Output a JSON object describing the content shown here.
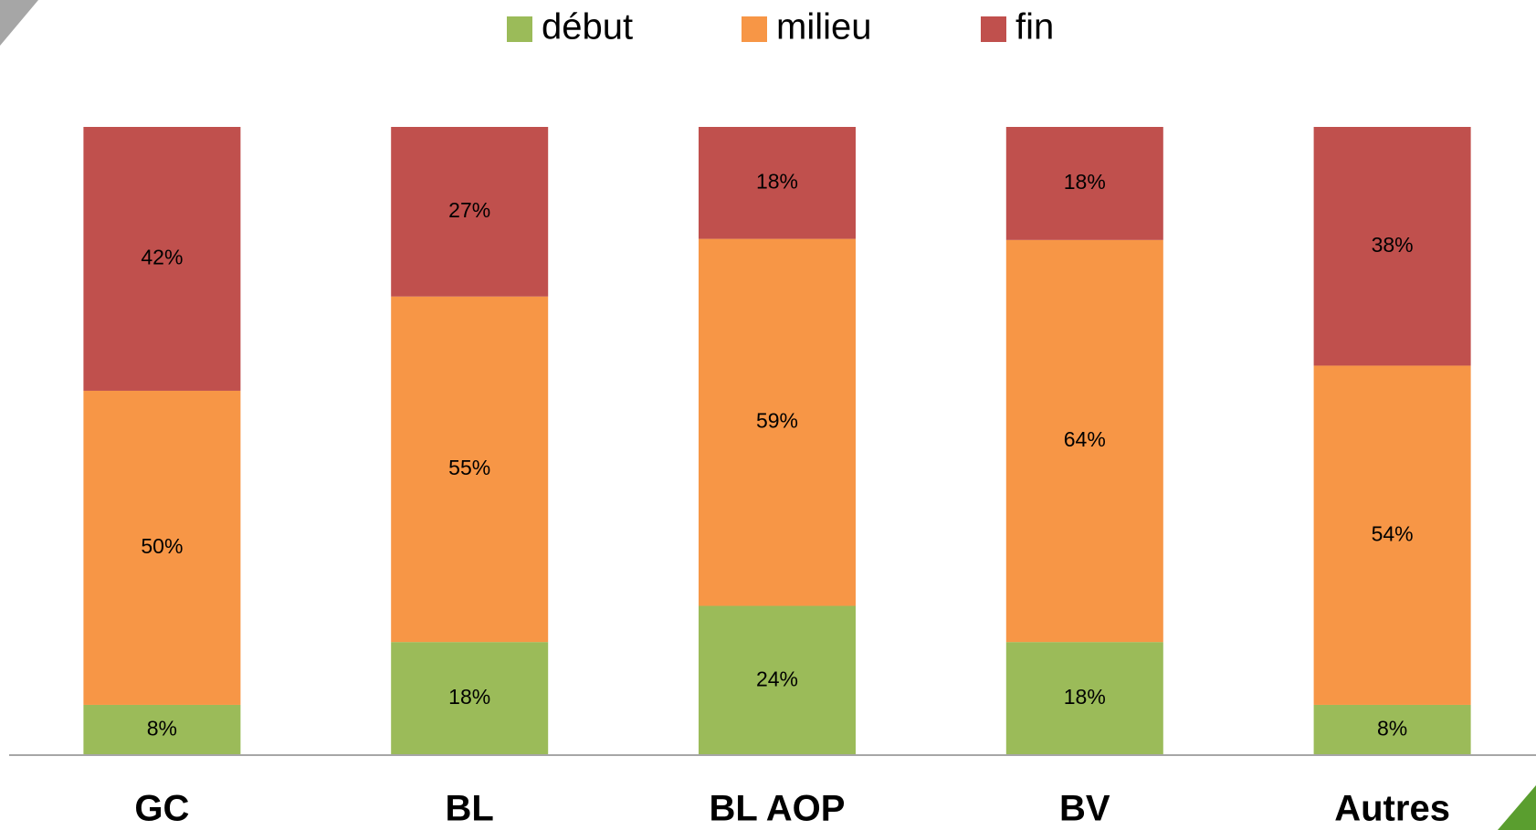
{
  "chart_data": {
    "type": "bar",
    "stacked": "percent",
    "categories": [
      "GC",
      "BL",
      "BL AOP",
      "BV",
      "Autres"
    ],
    "series": [
      {
        "name": "début",
        "color": "#9bbb59",
        "values": [
          8,
          18,
          24,
          18,
          8
        ],
        "value_labels": [
          "8%",
          "18%",
          "24%",
          "18%",
          "8%"
        ]
      },
      {
        "name": "milieu",
        "color": "#f79646",
        "values": [
          50,
          55,
          59,
          64,
          54
        ],
        "value_labels": [
          "50%",
          "55%",
          "59%",
          "64%",
          "54%"
        ]
      },
      {
        "name": "fin",
        "color": "#c0504d",
        "values": [
          42,
          27,
          18,
          18,
          38
        ],
        "value_labels": [
          "42%",
          "27%",
          "18%",
          "18%",
          "38%"
        ]
      }
    ],
    "legend": "top"
  }
}
